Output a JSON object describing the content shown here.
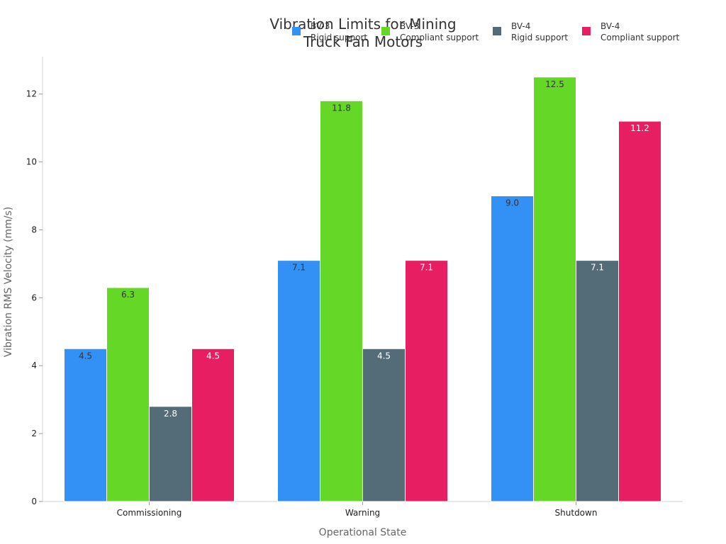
{
  "chart_data": {
    "type": "bar",
    "title": [
      "Vibration Limits for Mining",
      "Truck Fan Motors"
    ],
    "xlabel": "Operational State",
    "ylabel": "Vibration RMS Velocity (mm/s)",
    "categories": [
      "Commissioning",
      "Warning",
      "Shutdown"
    ],
    "ylim": [
      0,
      13.1
    ],
    "yticks": [
      0,
      2,
      4,
      6,
      8,
      10,
      12
    ],
    "grid": false,
    "legend_position": "top-right",
    "series": [
      {
        "name": [
          "BV-3",
          "Rigid support"
        ],
        "color": "#3391f5",
        "label_color": "#333333",
        "values": [
          4.5,
          7.1,
          9.0
        ]
      },
      {
        "name": [
          "BV-3",
          "Compliant support"
        ],
        "color": "#65d827",
        "label_color": "#333333",
        "values": [
          6.3,
          11.8,
          12.5
        ]
      },
      {
        "name": [
          "BV-4",
          "Rigid support"
        ],
        "color": "#546b78",
        "label_color": "#ffffff",
        "values": [
          2.8,
          4.5,
          7.1
        ]
      },
      {
        "name": [
          "BV-4",
          "Compliant support"
        ],
        "color": "#e81e63",
        "label_color": "#ffffff",
        "values": [
          4.5,
          7.1,
          11.2
        ]
      }
    ]
  }
}
